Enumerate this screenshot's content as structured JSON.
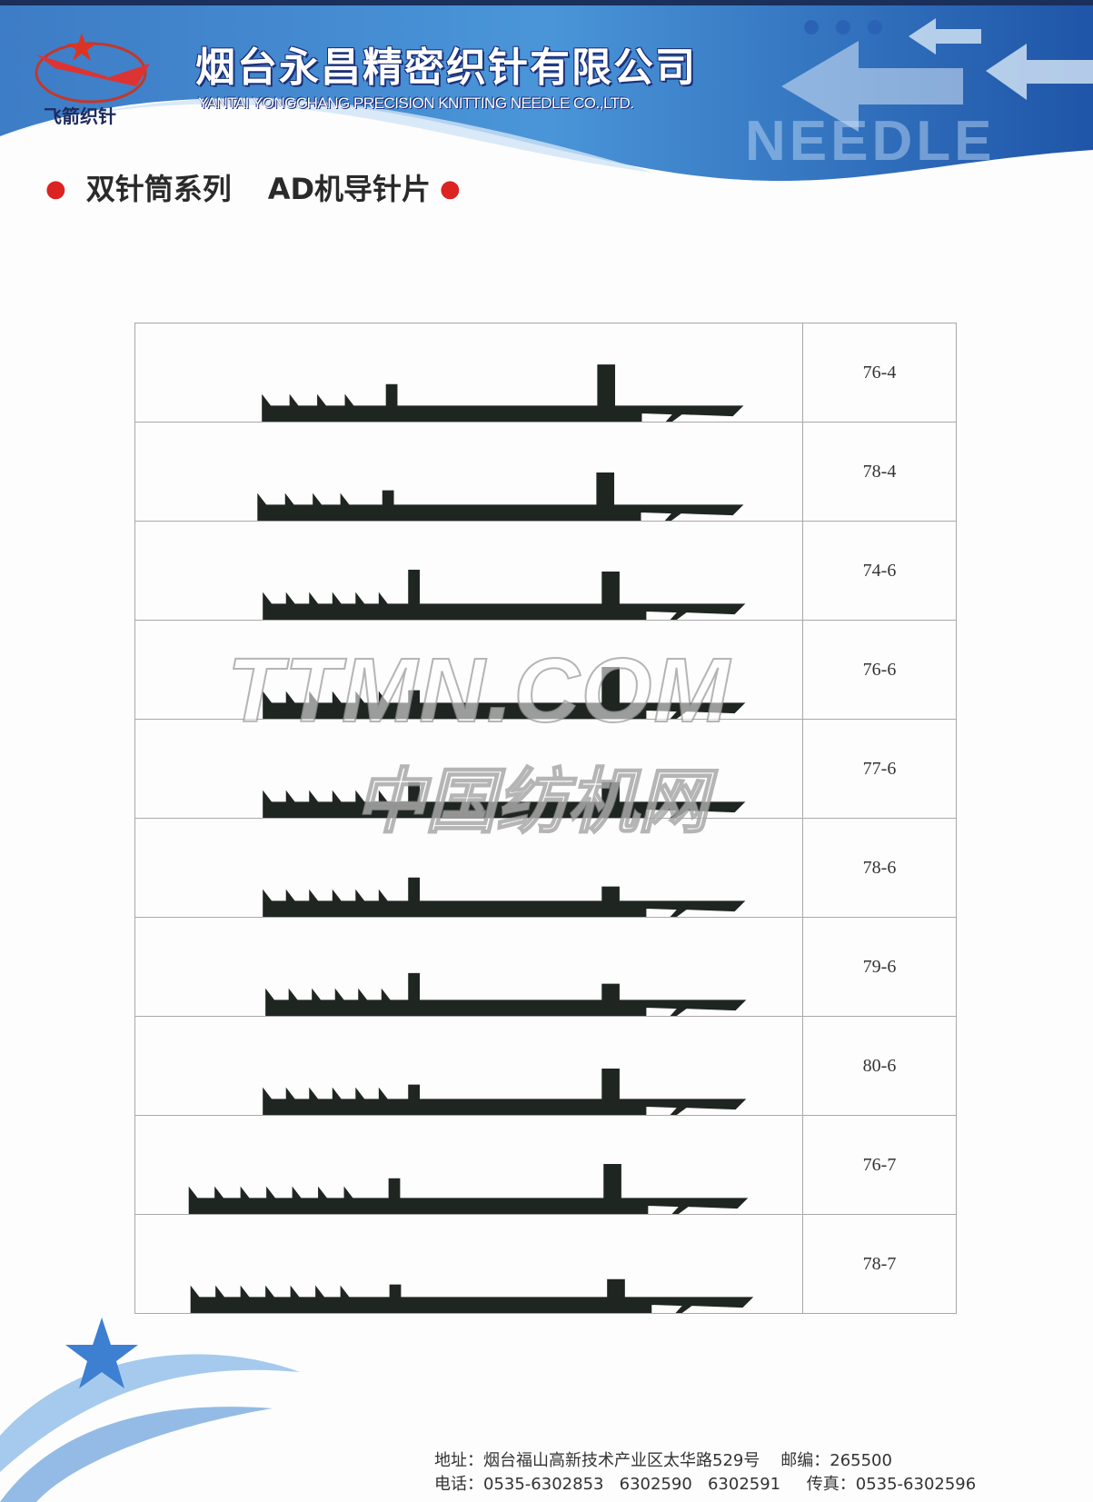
{
  "header": {
    "logo_text": "飞箭织针",
    "company_cn": "烟台永昌精密织针有限公司",
    "company_en": "YANTAI YONGCHANG PRECISION KNITTING NEEDLE CO.,LTD.",
    "decor_word": "NEEDLE",
    "brand_blue": "#2f6fc0",
    "accent_red": "#d22222"
  },
  "title": {
    "series": "双针筒系列",
    "product": "AD机导针片"
  },
  "catalog": {
    "items": [
      {
        "model": "76-4",
        "teeth": 4
      },
      {
        "model": "78-4",
        "teeth": 4
      },
      {
        "model": "74-6",
        "teeth": 6
      },
      {
        "model": "76-6",
        "teeth": 6
      },
      {
        "model": "77-6",
        "teeth": 6
      },
      {
        "model": "78-6",
        "teeth": 6
      },
      {
        "model": "79-6",
        "teeth": 6
      },
      {
        "model": "80-6",
        "teeth": 6
      },
      {
        "model": "76-7",
        "teeth": 7
      },
      {
        "model": "78-7",
        "teeth": 7
      }
    ]
  },
  "watermark": {
    "line1": "TTMN.COM",
    "line2": "中国纺机网"
  },
  "footer": {
    "address_line": "地址：烟台福山高新技术产业区太华路529号    邮编：265500",
    "phone_line": "电话：0535-6302853   6302590   6302591     传真：0535-6302596"
  }
}
